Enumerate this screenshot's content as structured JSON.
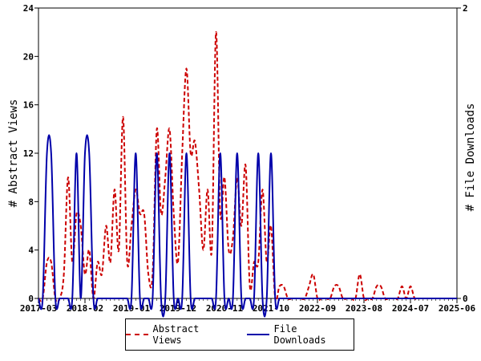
{
  "chart_data": {
    "type": "line",
    "title": "",
    "xlabel": "",
    "ylabel": "# Abstract Views",
    "y2label": "# File Downloads",
    "ylim": [
      0,
      24
    ],
    "y2lim": [
      0,
      2
    ],
    "yticks": [
      "0",
      "4",
      "8",
      "12",
      "16",
      "20",
      "24"
    ],
    "y2ticks": [
      "0",
      "2"
    ],
    "xticks": [
      "2017-03",
      "2018-02",
      "2019-01",
      "2019-12",
      "2020-11",
      "2021-10",
      "2022-09",
      "2023-08",
      "2024-07",
      "2025-06"
    ],
    "x_unit": "month",
    "x_start": "2017-03",
    "x_end": "2025-06",
    "grid": false,
    "legend_position": "bottom",
    "series": [
      {
        "name": "Abstract Views",
        "axis": "left",
        "color": "#cc0000",
        "style": "dashed",
        "points": [
          [
            "2017-03",
            0
          ],
          [
            "2017-04",
            0
          ],
          [
            "2017-05",
            3
          ],
          [
            "2017-06",
            3
          ],
          [
            "2017-07",
            0
          ],
          [
            "2017-08",
            0
          ],
          [
            "2017-09",
            2
          ],
          [
            "2017-10",
            10
          ],
          [
            "2017-11",
            3
          ],
          [
            "2017-12",
            7
          ],
          [
            "2018-01",
            6
          ],
          [
            "2018-02",
            2
          ],
          [
            "2018-03",
            4
          ],
          [
            "2018-04",
            0
          ],
          [
            "2018-05",
            3
          ],
          [
            "2018-06",
            2
          ],
          [
            "2018-07",
            6
          ],
          [
            "2018-08",
            3
          ],
          [
            "2018-09",
            9
          ],
          [
            "2018-10",
            4
          ],
          [
            "2018-11",
            15
          ],
          [
            "2018-12",
            3
          ],
          [
            "2019-01",
            6
          ],
          [
            "2019-02",
            9
          ],
          [
            "2019-03",
            7
          ],
          [
            "2019-04",
            7
          ],
          [
            "2019-05",
            2
          ],
          [
            "2019-06",
            2
          ],
          [
            "2019-07",
            14
          ],
          [
            "2019-08",
            7
          ],
          [
            "2019-09",
            10
          ],
          [
            "2019-10",
            14
          ],
          [
            "2019-11",
            7
          ],
          [
            "2019-12",
            3
          ],
          [
            "2020-01",
            12
          ],
          [
            "2020-02",
            19
          ],
          [
            "2020-03",
            12
          ],
          [
            "2020-04",
            13
          ],
          [
            "2020-05",
            9
          ],
          [
            "2020-06",
            4
          ],
          [
            "2020-07",
            9
          ],
          [
            "2020-08",
            4
          ],
          [
            "2020-09",
            22
          ],
          [
            "2020-10",
            7
          ],
          [
            "2020-11",
            10
          ],
          [
            "2020-12",
            4
          ],
          [
            "2021-01",
            5
          ],
          [
            "2021-02",
            10
          ],
          [
            "2021-03",
            6
          ],
          [
            "2021-04",
            11
          ],
          [
            "2021-05",
            1
          ],
          [
            "2021-06",
            3
          ],
          [
            "2021-07",
            3
          ],
          [
            "2021-08",
            9
          ],
          [
            "2021-09",
            3
          ],
          [
            "2021-10",
            6
          ],
          [
            "2021-11",
            0
          ],
          [
            "2021-12",
            1
          ],
          [
            "2022-01",
            1
          ],
          [
            "2022-02",
            0
          ],
          [
            "2022-03",
            0
          ],
          [
            "2022-04",
            0
          ],
          [
            "2022-05",
            0
          ],
          [
            "2022-06",
            0
          ],
          [
            "2022-07",
            1
          ],
          [
            "2022-08",
            2
          ],
          [
            "2022-09",
            0
          ],
          [
            "2022-10",
            0
          ],
          [
            "2022-11",
            0
          ],
          [
            "2022-12",
            0
          ],
          [
            "2023-01",
            1
          ],
          [
            "2023-02",
            1
          ],
          [
            "2023-03",
            0
          ],
          [
            "2023-04",
            0
          ],
          [
            "2023-05",
            0
          ],
          [
            "2023-06",
            0
          ],
          [
            "2023-07",
            2
          ],
          [
            "2023-08",
            0
          ],
          [
            "2023-09",
            0
          ],
          [
            "2023-10",
            0
          ],
          [
            "2023-11",
            1
          ],
          [
            "2023-12",
            1
          ],
          [
            "2024-01",
            0
          ],
          [
            "2024-02",
            0
          ],
          [
            "2024-03",
            0
          ],
          [
            "2024-04",
            0
          ],
          [
            "2024-05",
            1
          ],
          [
            "2024-06",
            0
          ],
          [
            "2024-07",
            1
          ],
          [
            "2024-08",
            0
          ],
          [
            "2024-09",
            0
          ],
          [
            "2024-10",
            0
          ],
          [
            "2024-11",
            0
          ],
          [
            "2024-12",
            0
          ],
          [
            "2025-01",
            0
          ],
          [
            "2025-02",
            0
          ],
          [
            "2025-03",
            0
          ],
          [
            "2025-04",
            0
          ],
          [
            "2025-05",
            0
          ],
          [
            "2025-06",
            0
          ]
        ]
      },
      {
        "name": "File Downloads",
        "axis": "right",
        "color": "#0000aa",
        "style": "solid",
        "points": [
          [
            "2017-03",
            0
          ],
          [
            "2017-04",
            0
          ],
          [
            "2017-05",
            1
          ],
          [
            "2017-06",
            1
          ],
          [
            "2017-07",
            0
          ],
          [
            "2017-08",
            0
          ],
          [
            "2017-09",
            0
          ],
          [
            "2017-10",
            0
          ],
          [
            "2017-11",
            0
          ],
          [
            "2017-12",
            1
          ],
          [
            "2018-01",
            0
          ],
          [
            "2018-02",
            1
          ],
          [
            "2018-03",
            1
          ],
          [
            "2018-04",
            0
          ],
          [
            "2018-05",
            0
          ],
          [
            "2018-06",
            0
          ],
          [
            "2018-07",
            0
          ],
          [
            "2018-08",
            0
          ],
          [
            "2018-09",
            0
          ],
          [
            "2018-10",
            0
          ],
          [
            "2018-11",
            0
          ],
          [
            "2018-12",
            0
          ],
          [
            "2019-01",
            0
          ],
          [
            "2019-02",
            1
          ],
          [
            "2019-03",
            0
          ],
          [
            "2019-04",
            0
          ],
          [
            "2019-05",
            0
          ],
          [
            "2019-06",
            0
          ],
          [
            "2019-07",
            1
          ],
          [
            "2019-08",
            0
          ],
          [
            "2019-09",
            0
          ],
          [
            "2019-10",
            1
          ],
          [
            "2019-11",
            0
          ],
          [
            "2019-12",
            0
          ],
          [
            "2020-01",
            0
          ],
          [
            "2020-02",
            1
          ],
          [
            "2020-03",
            0
          ],
          [
            "2020-04",
            0
          ],
          [
            "2020-05",
            0
          ],
          [
            "2020-06",
            0
          ],
          [
            "2020-07",
            0
          ],
          [
            "2020-08",
            0
          ],
          [
            "2020-09",
            0
          ],
          [
            "2020-10",
            1
          ],
          [
            "2020-11",
            0
          ],
          [
            "2020-12",
            0
          ],
          [
            "2021-01",
            0
          ],
          [
            "2021-02",
            1
          ],
          [
            "2021-03",
            0
          ],
          [
            "2021-04",
            0
          ],
          [
            "2021-05",
            0
          ],
          [
            "2021-06",
            0
          ],
          [
            "2021-07",
            1
          ],
          [
            "2021-08",
            0
          ],
          [
            "2021-09",
            0
          ],
          [
            "2021-10",
            1
          ],
          [
            "2021-11",
            0
          ],
          [
            "2021-12",
            0
          ],
          [
            "2022-01",
            0
          ],
          [
            "2022-02",
            0
          ],
          [
            "2022-03",
            0
          ],
          [
            "2022-04",
            0
          ],
          [
            "2022-05",
            0
          ],
          [
            "2022-06",
            0
          ],
          [
            "2022-07",
            0
          ],
          [
            "2022-08",
            0
          ],
          [
            "2022-09",
            0
          ],
          [
            "2022-10",
            0
          ],
          [
            "2022-11",
            0
          ],
          [
            "2022-12",
            0
          ],
          [
            "2023-01",
            0
          ],
          [
            "2023-02",
            0
          ],
          [
            "2023-03",
            0
          ],
          [
            "2023-04",
            0
          ],
          [
            "2023-05",
            0
          ],
          [
            "2023-06",
            0
          ],
          [
            "2023-07",
            0
          ],
          [
            "2023-08",
            0
          ],
          [
            "2023-09",
            0
          ],
          [
            "2023-10",
            0
          ],
          [
            "2023-11",
            0
          ],
          [
            "2023-12",
            0
          ],
          [
            "2024-01",
            0
          ],
          [
            "2024-02",
            0
          ],
          [
            "2024-03",
            0
          ],
          [
            "2024-04",
            0
          ],
          [
            "2024-05",
            0
          ],
          [
            "2024-06",
            0
          ],
          [
            "2024-07",
            0
          ],
          [
            "2024-08",
            0
          ],
          [
            "2024-09",
            0
          ],
          [
            "2024-10",
            0
          ],
          [
            "2024-11",
            0
          ],
          [
            "2024-12",
            0
          ],
          [
            "2025-01",
            0
          ],
          [
            "2025-02",
            0
          ],
          [
            "2025-03",
            0
          ],
          [
            "2025-04",
            0
          ],
          [
            "2025-05",
            0
          ],
          [
            "2025-06",
            0
          ]
        ]
      }
    ]
  }
}
